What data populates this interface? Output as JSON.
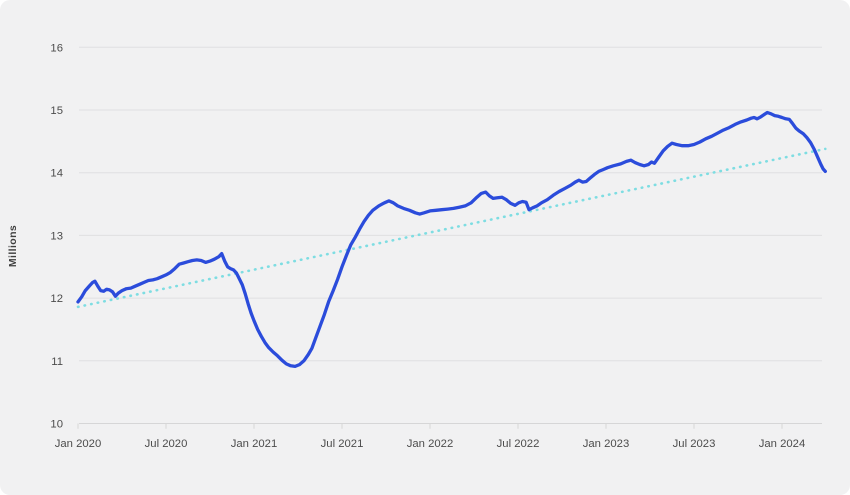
{
  "chart": {
    "y_axis_title": "Millions"
  },
  "theme": {
    "card_background": "#f1f1f2",
    "grid_color": "#e0e0e1",
    "axis_color": "#d6d6d7",
    "tick_label_color": "#4c4c4c",
    "axis_title_color": "#3e3e3e",
    "line_color": "#2b4cdb",
    "trend_color": "#7edde2"
  },
  "chart_data": {
    "type": "line",
    "title": "",
    "xlabel": "",
    "ylabel": "Millions",
    "ylim": [
      10,
      16
    ],
    "grid": "horizontal",
    "legend": "none",
    "x_unit": "months since Jan 2020",
    "y_ticks": [
      16,
      15,
      14,
      13,
      12,
      11,
      10
    ],
    "x_ticks": [
      {
        "t": 0,
        "label": "Jan 2020"
      },
      {
        "t": 6,
        "label": "Jul 2020"
      },
      {
        "t": 12,
        "label": "Jan 2021"
      },
      {
        "t": 18,
        "label": "Jul 2021"
      },
      {
        "t": 24,
        "label": "Jan 2022"
      },
      {
        "t": 30,
        "label": "Jul 2022"
      },
      {
        "t": 36,
        "label": "Jan 2023"
      },
      {
        "t": 42,
        "label": "Jul 2023"
      },
      {
        "t": 48,
        "label": "Jan 2024"
      }
    ],
    "series": [
      {
        "name": "trend",
        "style": "dotted",
        "color": "#7edde2",
        "points": [
          [
            0,
            11.86
          ],
          [
            50.95,
            14.38
          ]
        ]
      },
      {
        "name": "data",
        "style": "solid",
        "color": "#2b4cdb",
        "points": [
          [
            0,
            11.94
          ],
          [
            0.25,
            12.02
          ],
          [
            0.5,
            12.12
          ],
          [
            0.8,
            12.2
          ],
          [
            1.0,
            12.25
          ],
          [
            1.15,
            12.27
          ],
          [
            1.35,
            12.19
          ],
          [
            1.55,
            12.12
          ],
          [
            1.75,
            12.11
          ],
          [
            1.95,
            12.14
          ],
          [
            2.15,
            12.13
          ],
          [
            2.35,
            12.1
          ],
          [
            2.55,
            12.03
          ],
          [
            2.75,
            12.08
          ],
          [
            3.0,
            12.12
          ],
          [
            3.3,
            12.15
          ],
          [
            3.6,
            12.16
          ],
          [
            3.9,
            12.19
          ],
          [
            4.2,
            12.22
          ],
          [
            4.5,
            12.25
          ],
          [
            4.8,
            12.28
          ],
          [
            5.1,
            12.29
          ],
          [
            5.4,
            12.31
          ],
          [
            5.7,
            12.34
          ],
          [
            6.0,
            12.37
          ],
          [
            6.3,
            12.41
          ],
          [
            6.6,
            12.47
          ],
          [
            6.9,
            12.54
          ],
          [
            7.2,
            12.56
          ],
          [
            7.5,
            12.58
          ],
          [
            7.8,
            12.6
          ],
          [
            8.1,
            12.61
          ],
          [
            8.4,
            12.6
          ],
          [
            8.7,
            12.57
          ],
          [
            9.0,
            12.59
          ],
          [
            9.3,
            12.62
          ],
          [
            9.6,
            12.66
          ],
          [
            9.8,
            12.71
          ],
          [
            10.0,
            12.59
          ],
          [
            10.2,
            12.5
          ],
          [
            10.4,
            12.47
          ],
          [
            10.6,
            12.45
          ],
          [
            10.8,
            12.4
          ],
          [
            11.0,
            12.31
          ],
          [
            11.2,
            12.21
          ],
          [
            11.4,
            12.07
          ],
          [
            11.6,
            11.91
          ],
          [
            11.8,
            11.76
          ],
          [
            12.0,
            11.64
          ],
          [
            12.25,
            11.5
          ],
          [
            12.5,
            11.39
          ],
          [
            12.75,
            11.29
          ],
          [
            13.0,
            11.21
          ],
          [
            13.3,
            11.14
          ],
          [
            13.6,
            11.08
          ],
          [
            13.9,
            11.01
          ],
          [
            14.2,
            10.95
          ],
          [
            14.5,
            10.92
          ],
          [
            14.8,
            10.91
          ],
          [
            15.1,
            10.94
          ],
          [
            15.4,
            11.0
          ],
          [
            15.7,
            11.1
          ],
          [
            15.95,
            11.2
          ],
          [
            16.2,
            11.36
          ],
          [
            16.5,
            11.55
          ],
          [
            16.8,
            11.74
          ],
          [
            17.1,
            11.95
          ],
          [
            17.4,
            12.12
          ],
          [
            17.7,
            12.3
          ],
          [
            18.0,
            12.5
          ],
          [
            18.3,
            12.68
          ],
          [
            18.6,
            12.85
          ],
          [
            18.9,
            12.97
          ],
          [
            19.2,
            13.1
          ],
          [
            19.5,
            13.22
          ],
          [
            19.8,
            13.32
          ],
          [
            20.1,
            13.4
          ],
          [
            20.5,
            13.47
          ],
          [
            20.9,
            13.52
          ],
          [
            21.2,
            13.55
          ],
          [
            21.5,
            13.52
          ],
          [
            21.8,
            13.47
          ],
          [
            22.2,
            13.43
          ],
          [
            22.6,
            13.4
          ],
          [
            23.0,
            13.36
          ],
          [
            23.3,
            13.34
          ],
          [
            23.6,
            13.36
          ],
          [
            24.0,
            13.39
          ],
          [
            24.4,
            13.4
          ],
          [
            24.8,
            13.41
          ],
          [
            25.2,
            13.42
          ],
          [
            25.6,
            13.43
          ],
          [
            26.0,
            13.45
          ],
          [
            26.4,
            13.47
          ],
          [
            26.8,
            13.52
          ],
          [
            27.2,
            13.61
          ],
          [
            27.5,
            13.67
          ],
          [
            27.8,
            13.69
          ],
          [
            28.05,
            13.63
          ],
          [
            28.3,
            13.59
          ],
          [
            28.6,
            13.6
          ],
          [
            28.9,
            13.61
          ],
          [
            29.2,
            13.57
          ],
          [
            29.5,
            13.51
          ],
          [
            29.8,
            13.48
          ],
          [
            30.05,
            13.52
          ],
          [
            30.3,
            13.54
          ],
          [
            30.55,
            13.53
          ],
          [
            30.75,
            13.41
          ],
          [
            31.0,
            13.44
          ],
          [
            31.3,
            13.47
          ],
          [
            31.6,
            13.52
          ],
          [
            32.0,
            13.57
          ],
          [
            32.4,
            13.64
          ],
          [
            32.8,
            13.7
          ],
          [
            33.2,
            13.75
          ],
          [
            33.6,
            13.8
          ],
          [
            33.9,
            13.85
          ],
          [
            34.15,
            13.88
          ],
          [
            34.4,
            13.85
          ],
          [
            34.65,
            13.86
          ],
          [
            34.9,
            13.91
          ],
          [
            35.2,
            13.97
          ],
          [
            35.5,
            14.02
          ],
          [
            35.8,
            14.05
          ],
          [
            36.1,
            14.08
          ],
          [
            36.5,
            14.11
          ],
          [
            37.0,
            14.14
          ],
          [
            37.4,
            14.18
          ],
          [
            37.7,
            14.2
          ],
          [
            38.0,
            14.16
          ],
          [
            38.3,
            14.13
          ],
          [
            38.6,
            14.11
          ],
          [
            38.9,
            14.13
          ],
          [
            39.1,
            14.17
          ],
          [
            39.3,
            14.15
          ],
          [
            39.6,
            14.25
          ],
          [
            39.9,
            14.35
          ],
          [
            40.2,
            14.42
          ],
          [
            40.5,
            14.47
          ],
          [
            40.8,
            14.45
          ],
          [
            41.2,
            14.43
          ],
          [
            41.6,
            14.43
          ],
          [
            42.0,
            14.45
          ],
          [
            42.4,
            14.49
          ],
          [
            42.8,
            14.54
          ],
          [
            43.2,
            14.58
          ],
          [
            43.6,
            14.63
          ],
          [
            44.0,
            14.68
          ],
          [
            44.4,
            14.72
          ],
          [
            44.8,
            14.77
          ],
          [
            45.2,
            14.81
          ],
          [
            45.6,
            14.84
          ],
          [
            45.9,
            14.87
          ],
          [
            46.1,
            14.88
          ],
          [
            46.3,
            14.86
          ],
          [
            46.55,
            14.89
          ],
          [
            46.8,
            14.93
          ],
          [
            47.0,
            14.96
          ],
          [
            47.25,
            14.94
          ],
          [
            47.5,
            14.91
          ],
          [
            47.75,
            14.9
          ],
          [
            48.0,
            14.88
          ],
          [
            48.25,
            14.86
          ],
          [
            48.5,
            14.85
          ],
          [
            48.7,
            14.79
          ],
          [
            48.95,
            14.71
          ],
          [
            49.2,
            14.66
          ],
          [
            49.45,
            14.62
          ],
          [
            49.7,
            14.56
          ],
          [
            49.95,
            14.48
          ],
          [
            50.2,
            14.37
          ],
          [
            50.45,
            14.24
          ],
          [
            50.65,
            14.13
          ],
          [
            50.8,
            14.06
          ],
          [
            50.95,
            14.02
          ]
        ]
      }
    ]
  }
}
